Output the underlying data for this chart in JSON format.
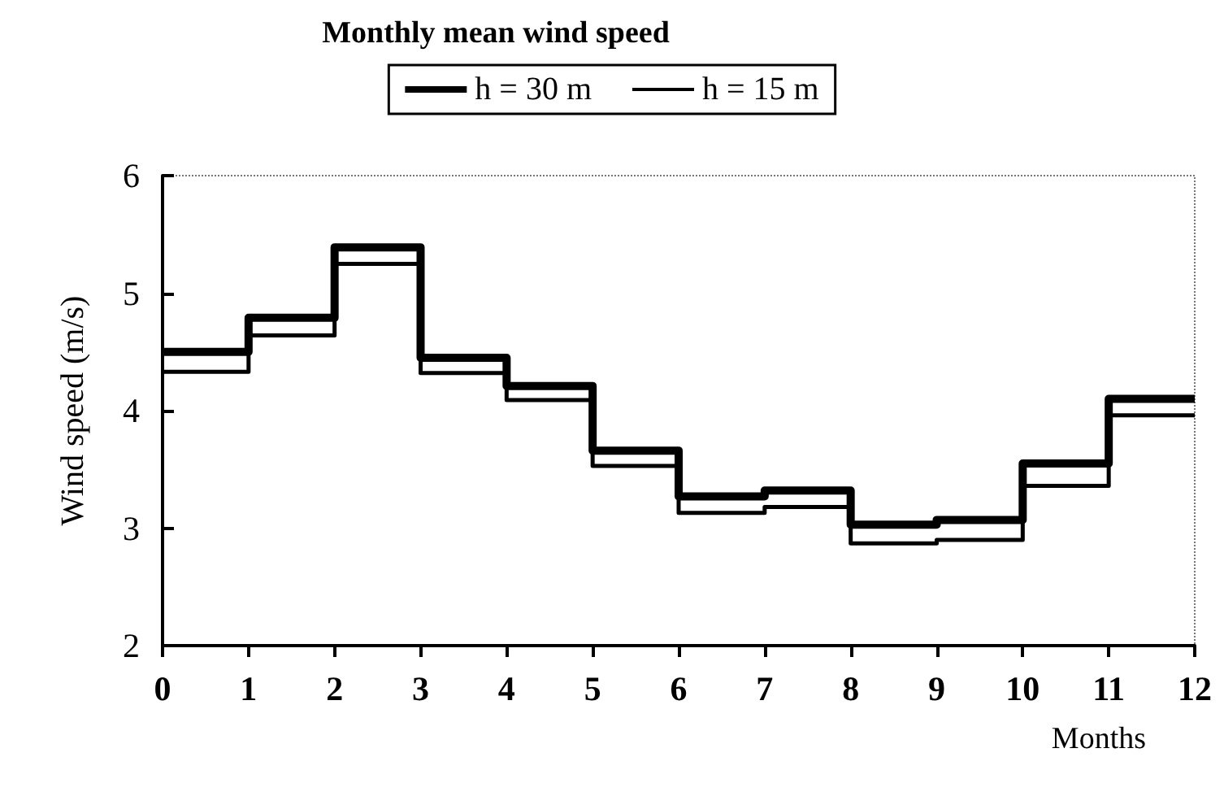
{
  "chart_data": {
    "type": "step",
    "title": "Monthly mean wind speed",
    "xlabel": "Months",
    "ylabel": "Wind speed (m/s)",
    "x": [
      0,
      1,
      2,
      3,
      4,
      5,
      6,
      7,
      8,
      9,
      10,
      11,
      12
    ],
    "series": [
      {
        "name": "h = 30 m",
        "color": "#000000",
        "values": [
          4.5,
          4.79,
          5.39,
          4.45,
          4.21,
          3.66,
          3.27,
          3.32,
          3.03,
          3.07,
          3.55,
          4.1,
          4.1
        ]
      },
      {
        "name": "h = 15 m",
        "color": "#000000",
        "values": [
          4.33,
          4.64,
          5.25,
          4.32,
          4.09,
          3.53,
          3.13,
          3.18,
          2.87,
          2.9,
          3.36,
          3.96,
          3.96
        ]
      }
    ],
    "xlim": [
      0,
      12
    ],
    "xticks": [
      0,
      1,
      2,
      3,
      4,
      5,
      6,
      7,
      8,
      9,
      10,
      11,
      12
    ],
    "ylim": [
      2,
      6
    ],
    "yticks": [
      2,
      3,
      4,
      5,
      6
    ],
    "grid": false,
    "legend": "top",
    "marker": "none",
    "line_style": "solid"
  }
}
